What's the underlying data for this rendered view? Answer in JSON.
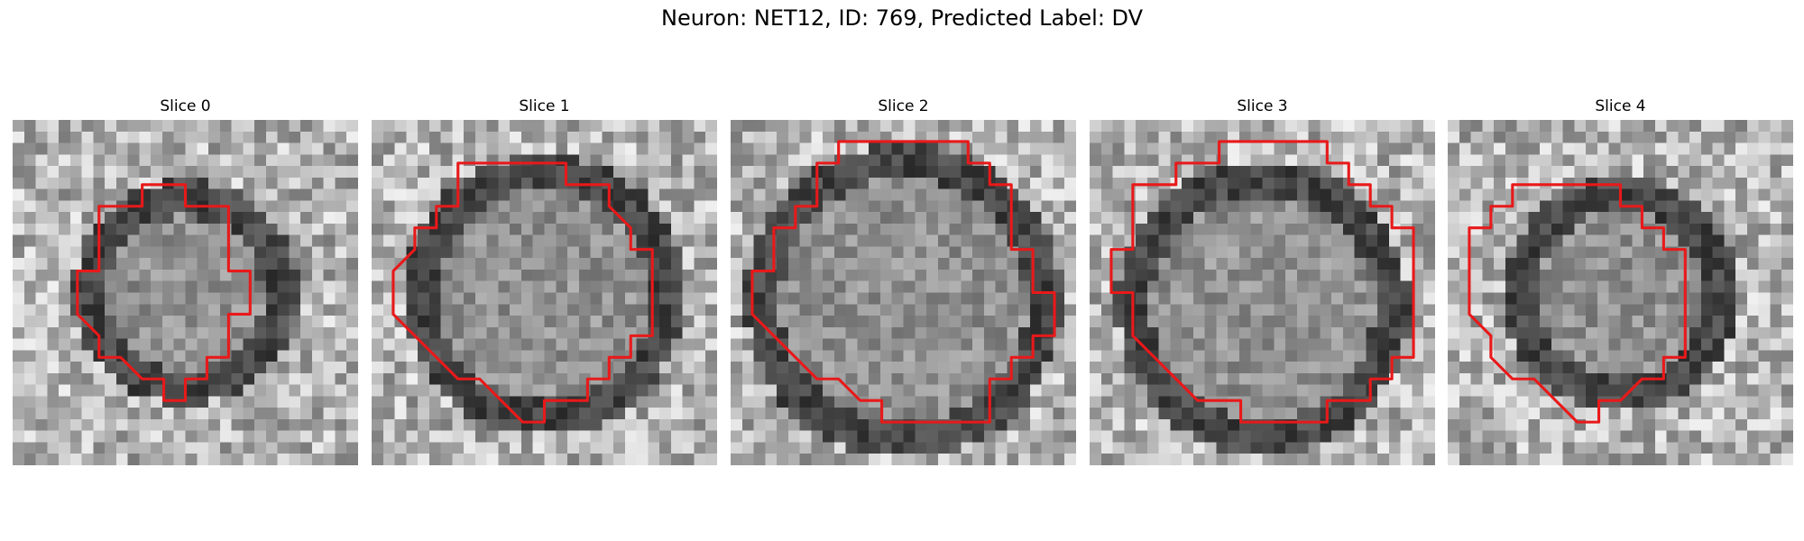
{
  "figure": {
    "title": "Neuron: NET12, ID: 769, Predicted Label: DV",
    "panels": [
      {
        "label": "Slice 0",
        "seed": 11,
        "contour": [
          [
            7,
            3
          ],
          [
            8,
            3
          ],
          [
            8,
            4
          ],
          [
            10,
            4
          ],
          [
            10,
            7
          ],
          [
            11,
            7
          ],
          [
            11,
            9
          ],
          [
            10,
            9
          ],
          [
            10,
            11
          ],
          [
            9,
            11
          ],
          [
            9,
            12
          ],
          [
            8,
            12
          ],
          [
            8,
            13
          ],
          [
            7,
            13
          ],
          [
            7,
            12
          ],
          [
            6,
            12
          ],
          [
            5,
            11
          ],
          [
            4,
            11
          ],
          [
            4,
            10
          ],
          [
            3,
            9
          ],
          [
            3,
            7
          ],
          [
            4,
            7
          ],
          [
            4,
            4
          ],
          [
            6,
            4
          ],
          [
            6,
            3
          ]
        ]
      },
      {
        "label": "Slice 1",
        "seed": 23,
        "contour": [
          [
            4,
            2
          ],
          [
            9,
            2
          ],
          [
            9,
            3
          ],
          [
            11,
            3
          ],
          [
            11,
            4
          ],
          [
            12,
            5
          ],
          [
            12,
            6
          ],
          [
            13,
            6
          ],
          [
            13,
            10
          ],
          [
            12,
            10
          ],
          [
            12,
            11
          ],
          [
            11,
            11
          ],
          [
            11,
            12
          ],
          [
            10,
            12
          ],
          [
            10,
            13
          ],
          [
            8,
            13
          ],
          [
            8,
            14
          ],
          [
            7,
            14
          ],
          [
            6,
            13
          ],
          [
            5,
            12
          ],
          [
            4,
            12
          ],
          [
            3,
            11
          ],
          [
            2,
            10
          ],
          [
            1,
            9
          ],
          [
            1,
            7
          ],
          [
            1,
            7
          ],
          [
            2,
            6
          ],
          [
            2,
            5
          ],
          [
            3,
            5
          ],
          [
            3,
            4
          ],
          [
            4,
            4
          ]
        ]
      },
      {
        "label": "Slice 2",
        "seed": 37,
        "contour": [
          [
            5,
            1
          ],
          [
            11,
            1
          ],
          [
            11,
            2
          ],
          [
            12,
            2
          ],
          [
            12,
            3
          ],
          [
            13,
            3
          ],
          [
            13,
            6
          ],
          [
            14,
            6
          ],
          [
            14,
            8
          ],
          [
            15,
            8
          ],
          [
            15,
            10
          ],
          [
            14,
            10
          ],
          [
            14,
            11
          ],
          [
            13,
            11
          ],
          [
            13,
            12
          ],
          [
            12,
            12
          ],
          [
            12,
            14
          ],
          [
            7,
            14
          ],
          [
            7,
            13
          ],
          [
            6,
            13
          ],
          [
            5,
            12
          ],
          [
            4,
            12
          ],
          [
            3,
            11
          ],
          [
            2,
            10
          ],
          [
            1,
            9
          ],
          [
            1,
            8
          ],
          [
            1,
            7
          ],
          [
            2,
            7
          ],
          [
            2,
            5
          ],
          [
            3,
            5
          ],
          [
            3,
            4
          ],
          [
            4,
            4
          ],
          [
            4,
            2
          ],
          [
            5,
            2
          ]
        ]
      },
      {
        "label": "Slice 3",
        "seed": 51,
        "contour": [
          [
            6,
            1
          ],
          [
            11,
            1
          ],
          [
            11,
            2
          ],
          [
            12,
            2
          ],
          [
            12,
            3
          ],
          [
            13,
            3
          ],
          [
            13,
            4
          ],
          [
            14,
            4
          ],
          [
            14,
            5
          ],
          [
            15,
            5
          ],
          [
            15,
            11
          ],
          [
            14,
            11
          ],
          [
            14,
            12
          ],
          [
            13,
            12
          ],
          [
            13,
            13
          ],
          [
            11,
            13
          ],
          [
            11,
            14
          ],
          [
            7,
            14
          ],
          [
            7,
            13
          ],
          [
            5,
            13
          ],
          [
            4,
            12
          ],
          [
            3,
            11
          ],
          [
            2,
            10
          ],
          [
            2,
            9
          ],
          [
            2,
            8
          ],
          [
            1,
            8
          ],
          [
            1,
            6
          ],
          [
            2,
            6
          ],
          [
            2,
            3
          ],
          [
            4,
            3
          ],
          [
            4,
            2
          ],
          [
            6,
            2
          ]
        ]
      },
      {
        "label": "Slice 4",
        "seed": 67,
        "contour": [
          [
            5,
            3
          ],
          [
            8,
            3
          ],
          [
            8,
            4
          ],
          [
            9,
            4
          ],
          [
            9,
            5
          ],
          [
            10,
            5
          ],
          [
            10,
            6
          ],
          [
            11,
            6
          ],
          [
            11,
            11
          ],
          [
            10,
            11
          ],
          [
            10,
            12
          ],
          [
            9,
            12
          ],
          [
            8,
            13
          ],
          [
            7,
            13
          ],
          [
            7,
            14
          ],
          [
            6,
            14
          ],
          [
            5,
            13
          ],
          [
            4,
            12
          ],
          [
            3,
            12
          ],
          [
            2,
            11
          ],
          [
            2,
            10
          ],
          [
            1,
            9
          ],
          [
            1,
            5
          ],
          [
            2,
            5
          ],
          [
            2,
            4
          ],
          [
            3,
            4
          ],
          [
            3,
            3
          ]
        ]
      }
    ]
  },
  "colors": {
    "contour": "#e8191a"
  }
}
